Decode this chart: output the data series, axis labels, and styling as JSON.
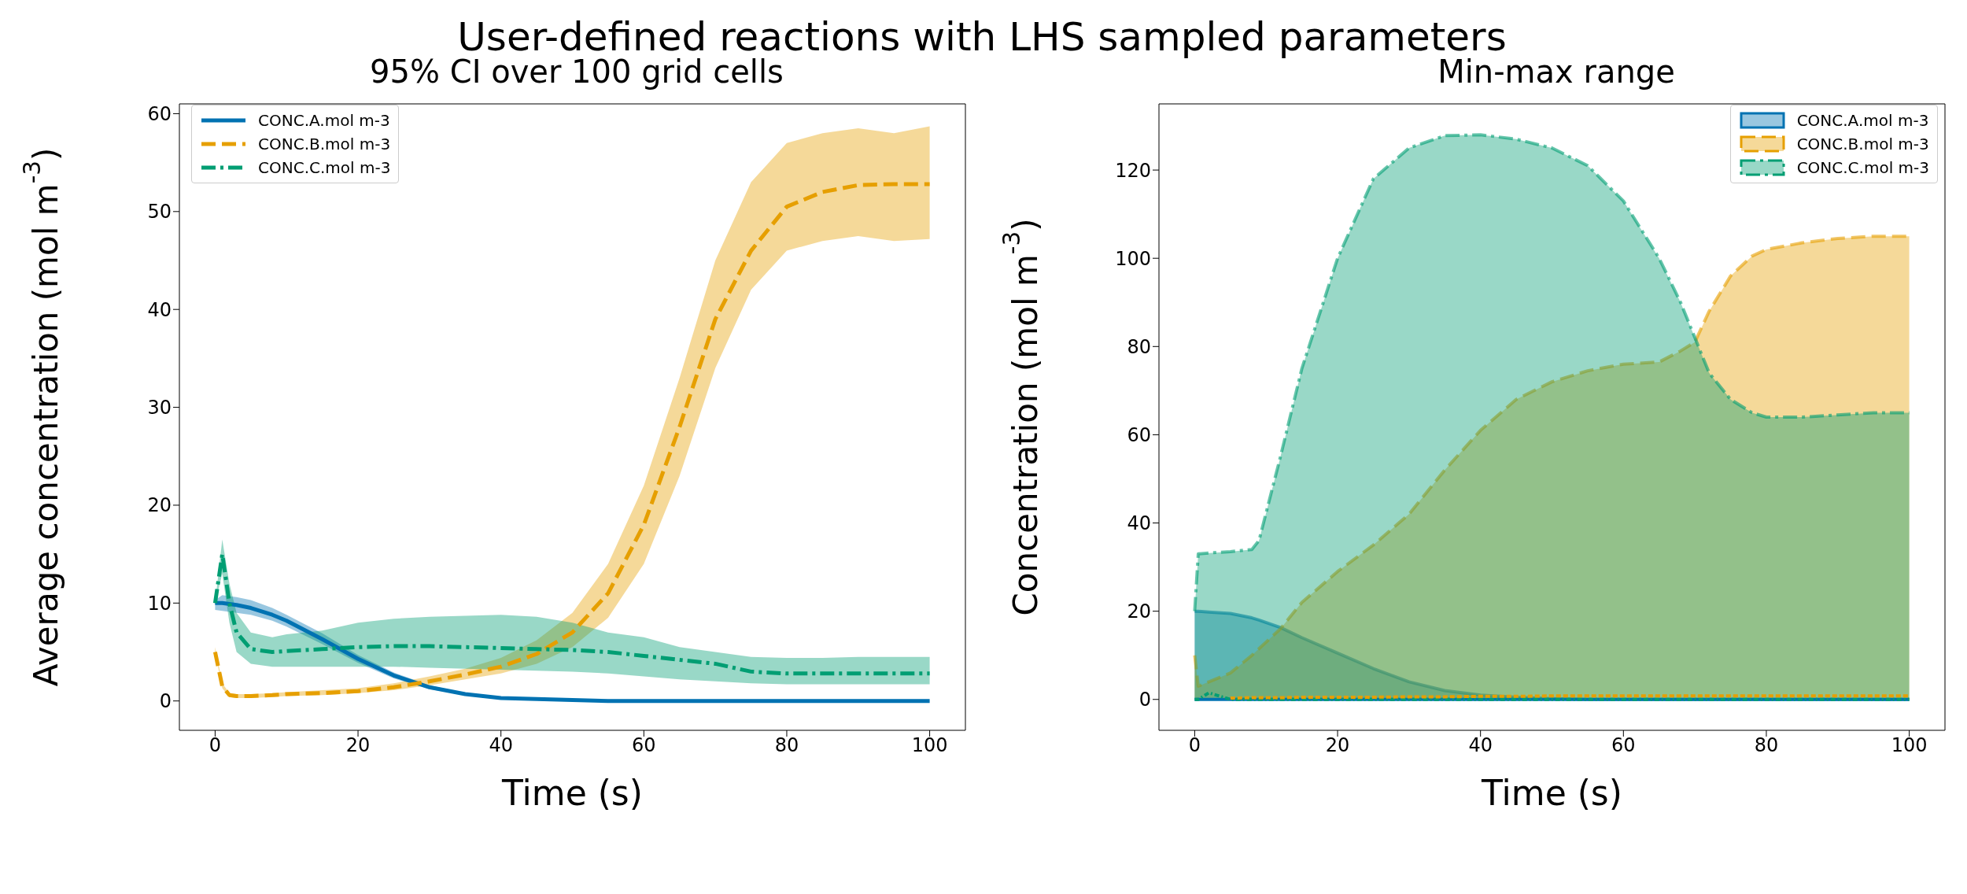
{
  "chart_data": [
    {
      "type": "line",
      "annotations": [
        "User-defined reactions with LHS sampled parameters"
      ],
      "title": "95% CI over 100 grid cells",
      "xlabel": "Time (s)",
      "ylabel": "Average concentration (mol m$^{-3}$)",
      "xlim": [
        -5,
        105
      ],
      "xticks": [
        0,
        20,
        40,
        60,
        80,
        100
      ],
      "ylim": [
        -3,
        61
      ],
      "yticks": [
        0,
        10,
        20,
        30,
        40,
        50,
        60
      ],
      "grid": false,
      "legend": "top left",
      "x": [
        0,
        1,
        2,
        3,
        5,
        8,
        10,
        15,
        20,
        25,
        30,
        35,
        40,
        45,
        50,
        55,
        60,
        65,
        70,
        75,
        80,
        85,
        90,
        95,
        100
      ],
      "series": [
        {
          "name": "CONC.A.mol m-3",
          "color": "#0072b2",
          "line_style": "solid",
          "values": [
            10,
            10,
            9.9,
            9.8,
            9.5,
            8.8,
            8.2,
            6.3,
            4.3,
            2.6,
            1.4,
            0.7,
            0.3,
            0.2,
            0.1,
            0,
            0,
            0,
            0,
            0,
            0,
            0,
            0,
            0,
            0
          ],
          "lower": [
            9.3,
            9.2,
            9.1,
            9,
            8.8,
            8.2,
            7.6,
            5.8,
            3.9,
            2.3,
            1.2,
            0.6,
            0.25,
            0.1,
            0,
            0,
            0,
            0,
            0,
            0,
            0,
            0,
            0,
            0,
            0
          ],
          "upper": [
            10.3,
            10.8,
            10.7,
            10.6,
            10.3,
            9.5,
            8.8,
            6.9,
            4.7,
            2.9,
            1.6,
            0.8,
            0.35,
            0.2,
            0.1,
            0,
            0,
            0,
            0,
            0,
            0,
            0,
            0,
            0,
            0
          ]
        },
        {
          "name": "CONC.B.mol m-3",
          "color": "#e69f00",
          "line_style": "dashed",
          "values": [
            5,
            1.5,
            0.6,
            0.5,
            0.5,
            0.6,
            0.7,
            0.8,
            1,
            1.4,
            2,
            2.7,
            3.5,
            4.8,
            7,
            11,
            18,
            28,
            39,
            46,
            50.5,
            52,
            52.7,
            52.8,
            52.8
          ],
          "lower": [
            5,
            1.3,
            0.4,
            0.3,
            0.3,
            0.4,
            0.5,
            0.6,
            0.8,
            1.1,
            1.6,
            2.2,
            2.8,
            3.8,
            5.5,
            8.5,
            14,
            23,
            34,
            42,
            46,
            47,
            47.5,
            47,
            47.2
          ],
          "upper": [
            5.5,
            1.8,
            0.8,
            0.7,
            0.7,
            0.8,
            0.9,
            1.1,
            1.3,
            1.8,
            2.5,
            3.3,
            4.4,
            6.2,
            9,
            14,
            22,
            33,
            45,
            53,
            57,
            58,
            58.5,
            58,
            58.7
          ]
        },
        {
          "name": "CONC.C.mol m-3",
          "color": "#009e73",
          "line_style": "dashdot",
          "values": [
            10,
            15,
            10,
            7,
            5.3,
            5,
            5.1,
            5.3,
            5.5,
            5.6,
            5.6,
            5.5,
            5.4,
            5.3,
            5.2,
            5,
            4.6,
            4.2,
            3.8,
            3,
            2.8,
            2.8,
            2.8,
            2.8,
            2.8
          ],
          "lower": [
            10,
            13,
            8,
            5,
            3.8,
            3.5,
            3.5,
            3.5,
            3.5,
            3.5,
            3.4,
            3.3,
            3.2,
            3.1,
            3,
            2.8,
            2.5,
            2.2,
            2,
            1.8,
            1.7,
            1.7,
            1.7,
            1.7,
            1.7
          ],
          "upper": [
            10,
            16.5,
            12,
            9,
            7,
            6.5,
            6.8,
            7.2,
            8,
            8.4,
            8.6,
            8.7,
            8.8,
            8.6,
            8,
            7,
            6.5,
            5.5,
            5,
            4.5,
            4.4,
            4.4,
            4.5,
            4.5,
            4.5
          ]
        }
      ]
    },
    {
      "type": "area",
      "title": "Min-max range",
      "xlabel": "Time (s)",
      "ylabel": "Concentration (mol m$^{-3}$)",
      "xlim": [
        -5,
        105
      ],
      "xticks": [
        0,
        20,
        40,
        60,
        80,
        100
      ],
      "ylim": [
        -7,
        135
      ],
      "yticks": [
        0,
        20,
        40,
        60,
        80,
        100,
        120
      ],
      "grid": false,
      "legend": "top right",
      "x": [
        0,
        0.5,
        2,
        5,
        8,
        9,
        12,
        15,
        20,
        25,
        30,
        35,
        40,
        45,
        50,
        55,
        60,
        65,
        68,
        70,
        72,
        75,
        78,
        80,
        85,
        90,
        95,
        100
      ],
      "series": [
        {
          "name": "CONC.A.mol m-3",
          "color": "#0072b2",
          "line_style": "solid",
          "values": [
            20,
            20,
            19.8,
            19.5,
            18.5,
            18,
            16.3,
            14,
            10.5,
            7,
            4,
            2,
            1,
            0.5,
            0.2,
            0,
            0,
            0,
            0,
            0,
            0,
            0,
            0,
            0,
            0,
            0,
            0,
            0
          ]
        },
        {
          "name": "CONC.B.mol m-3",
          "color": "#e69f00",
          "line_style": "dashed",
          "values": [
            10,
            3,
            4,
            6,
            10,
            11.5,
            16,
            22,
            29,
            35,
            42,
            52,
            61,
            68,
            72,
            74.5,
            76,
            76.5,
            79,
            81,
            88,
            96,
            100.5,
            102,
            103.5,
            104.5,
            105,
            105
          ]
        },
        {
          "name": "CONC.C.mol m-3",
          "color": "#009e73",
          "line_style": "dashdot",
          "values": [
            20,
            33,
            33.2,
            33.5,
            34,
            36,
            55,
            75,
            100,
            118,
            125,
            127.8,
            128,
            127,
            125,
            121,
            113,
            100,
            90,
            82,
            74,
            68,
            65,
            64,
            64,
            64.5,
            65,
            65
          ]
        },
        {
          "type": "line",
          "color": "#0072b2",
          "line_style": "solid",
          "values": [
            0,
            0,
            0,
            0,
            0,
            0,
            0,
            0,
            0,
            0,
            0,
            0,
            0,
            0,
            0,
            0,
            0,
            0,
            0,
            0,
            0,
            0,
            0,
            0,
            0,
            0,
            0,
            0
          ]
        },
        {
          "type": "line",
          "color": "#009e73",
          "line_style": "dashdot",
          "values": [
            0,
            0,
            1.5,
            0,
            0,
            0,
            0,
            0,
            0,
            0,
            0,
            0,
            0,
            0,
            0,
            0,
            0,
            0,
            0,
            0,
            0,
            0,
            0,
            0,
            0,
            0,
            0,
            0
          ]
        },
        {
          "type": "line",
          "color": "#e69f00",
          "line_style": "dashed",
          "values": [
            null,
            null,
            null,
            0.3,
            0.4,
            0.4,
            0.4,
            0.5,
            0.5,
            0.5,
            0.6,
            0.6,
            0.7,
            0.7,
            0.8,
            0.8,
            0.8,
            0.8,
            0.8,
            0.8,
            0.8,
            0.8,
            0.8,
            0.8,
            0.8,
            0.8,
            0.8,
            0.8
          ]
        }
      ]
    }
  ]
}
